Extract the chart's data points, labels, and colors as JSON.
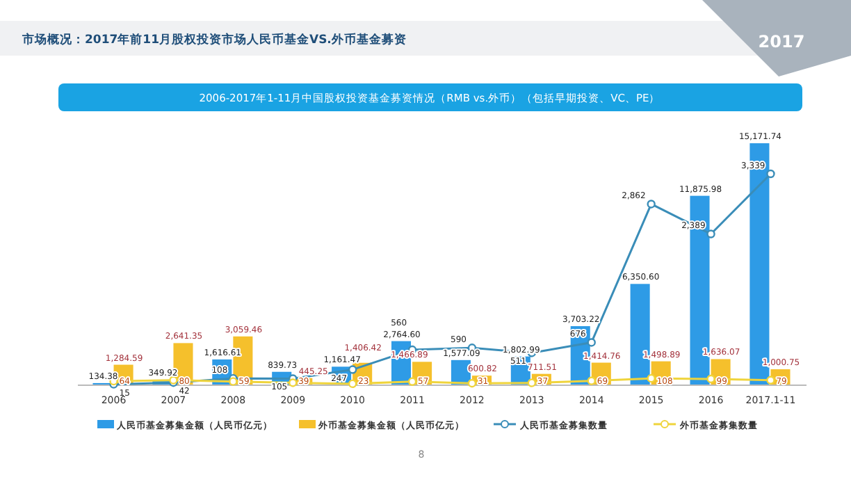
{
  "chart_data": {
    "type": "bar",
    "title": "市场概况：2017年前11月股权投资市场人民币基金VS.外币基金募资",
    "subtitle": "2006-2017年1-11月中国股权投资基金募资情况（RMB vs.外币）（包括早期投资、VC、PE）",
    "annotations": [
      "2017",
      "8"
    ],
    "legend": "bottom",
    "marker": "circle",
    "categories": [
      "2006",
      "2007",
      "2008",
      "2009",
      "2010",
      "2011",
      "2012",
      "2013",
      "2014",
      "2015",
      "2016",
      "2017.1-11"
    ],
    "series": [
      {
        "name": "人民币基金募集金额（人民币亿元）",
        "color": "#2e9be6",
        "values": [
          134.38,
          349.92,
          1616.61,
          839.73,
          1161.47,
          2764.6,
          1577.09,
          1802.99,
          3703.22,
          6350.6,
          11875.98,
          15171.74
        ],
        "value_labels": [
          "134.38",
          "349.92",
          "1,616.61",
          "839.73",
          "1,161.47",
          "2,764.60",
          "1,577.09",
          "1,802.99",
          "3,703.22",
          "6,350.60",
          "11,875.98",
          "15,171.74"
        ]
      },
      {
        "name": "外币基金募集金额（人民币亿元）",
        "color": "#f5c02c",
        "values": [
          1284.59,
          2641.35,
          3059.46,
          445.25,
          1406.42,
          1466.89,
          600.82,
          711.51,
          1414.76,
          1498.89,
          1636.07,
          1000.75
        ],
        "value_labels": [
          "1,284.59",
          "2,641.35",
          "3,059.46",
          "445.25",
          "1,406.42",
          "1,466.89",
          "600.82",
          "711.51",
          "1,414.76",
          "1,498.89",
          "1,636.07",
          "1,000.75"
        ]
      },
      {
        "name": "人民币基金募集数量",
        "type": "line",
        "axis": "y2",
        "color": "#3a8db8",
        "values": [
          15,
          42,
          108,
          105,
          247,
          560,
          590,
          511,
          676,
          2862,
          2389,
          3339
        ],
        "value_labels": [
          "15",
          "42",
          "108",
          "105",
          "247",
          "560",
          "590",
          "511",
          "676",
          "2,862",
          "2,389",
          "3,339"
        ]
      },
      {
        "name": "外币基金募集数量",
        "type": "line",
        "axis": "y2",
        "color": "#efd43c",
        "values": [
          64,
          80,
          59,
          39,
          23,
          57,
          31,
          37,
          69,
          108,
          99,
          79
        ],
        "value_labels": [
          "64",
          "80",
          "59",
          "39",
          "23",
          "57",
          "31",
          "37",
          "69",
          "108",
          "99",
          "79"
        ]
      }
    ]
  }
}
